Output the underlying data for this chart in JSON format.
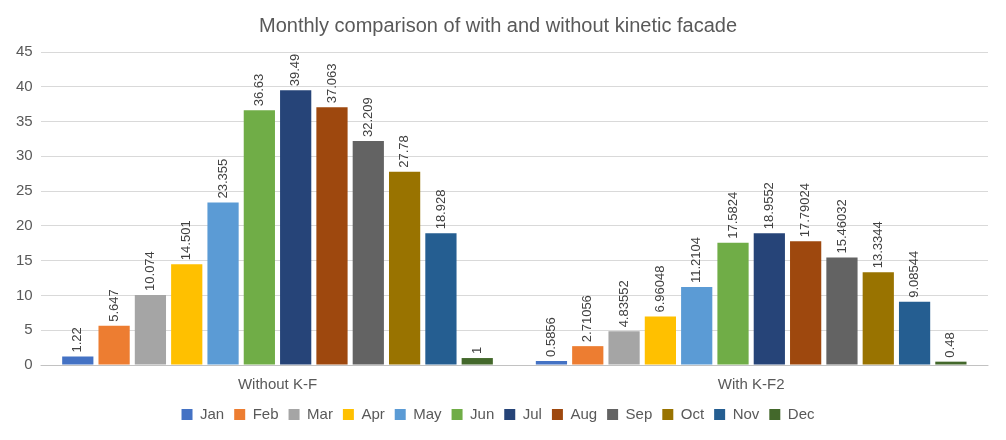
{
  "chart_data": {
    "type": "bar",
    "title": "Monthly comparison of with and without kinetic facade",
    "categories": [
      "Without K-F",
      "With K-F2"
    ],
    "series": [
      {
        "name": "Jan",
        "color": "#4472c4",
        "values": [
          1.22,
          0.5856
        ]
      },
      {
        "name": "Feb",
        "color": "#ed7d31",
        "values": [
          5.647,
          2.71056
        ]
      },
      {
        "name": "Mar",
        "color": "#a5a5a5",
        "values": [
          10.074,
          4.83552
        ]
      },
      {
        "name": "Apr",
        "color": "#ffc000",
        "values": [
          14.501,
          6.96048
        ]
      },
      {
        "name": "May",
        "color": "#5b9bd5",
        "values": [
          23.355,
          11.2104
        ]
      },
      {
        "name": "Jun",
        "color": "#70ad47",
        "values": [
          36.63,
          17.5824
        ]
      },
      {
        "name": "Jul",
        "color": "#264478",
        "values": [
          39.49,
          18.9552
        ]
      },
      {
        "name": "Aug",
        "color": "#9e480e",
        "values": [
          37.063,
          17.79024
        ]
      },
      {
        "name": "Sep",
        "color": "#636363",
        "values": [
          32.209,
          15.46032
        ]
      },
      {
        "name": "Oct",
        "color": "#997300",
        "values": [
          27.78,
          13.3344
        ]
      },
      {
        "name": "Nov",
        "color": "#255e91",
        "values": [
          18.928,
          9.08544
        ]
      },
      {
        "name": "Dec",
        "color": "#43682b",
        "values": [
          1,
          0.48
        ]
      }
    ],
    "ylim": [
      0,
      45
    ],
    "yticks": [
      0,
      5,
      10,
      15,
      20,
      25,
      30,
      35,
      40,
      45
    ],
    "grid": "y",
    "legend": "bottom",
    "data_labels": true
  }
}
